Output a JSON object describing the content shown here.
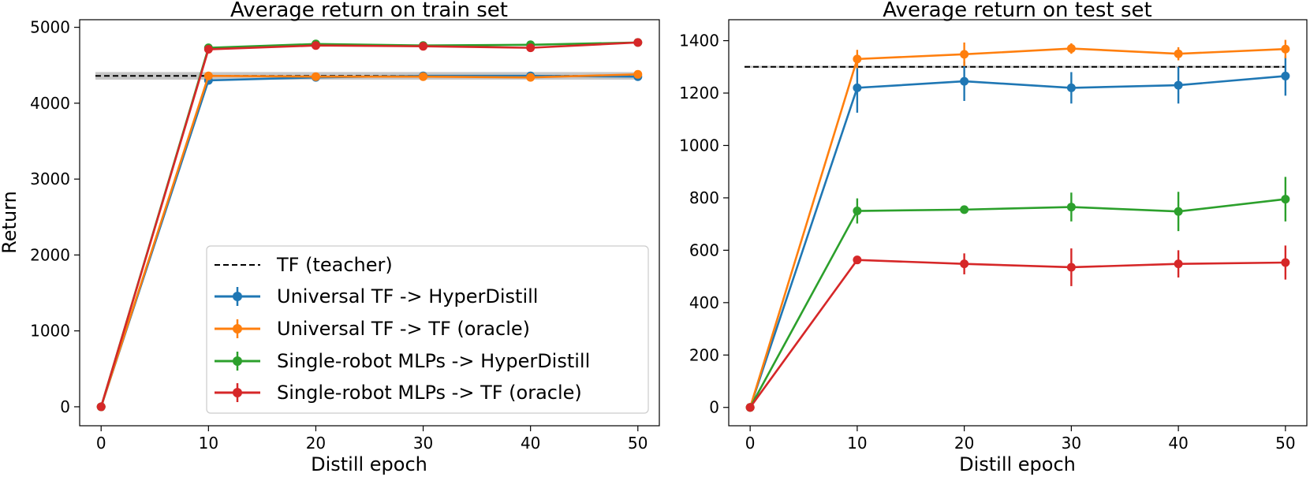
{
  "chart_data": [
    {
      "type": "line",
      "title": "Average return on train set",
      "xlabel": "Distill epoch",
      "ylabel": "Return",
      "xlim": [
        -2,
        52
      ],
      "ylim": [
        -250,
        5100
      ],
      "xticks": [
        0,
        10,
        20,
        30,
        40,
        50
      ],
      "yticks": [
        0,
        1000,
        2000,
        3000,
        4000,
        5000
      ],
      "grid": false,
      "legend": "lower-right",
      "teacher": {
        "name": "TF (teacher)",
        "value": 4360,
        "band": [
          4310,
          4410
        ],
        "color": "#000000",
        "style": "dashed"
      },
      "x": [
        0,
        10,
        20,
        30,
        40,
        50
      ],
      "series": [
        {
          "name": "Universal TF -> HyperDistill",
          "color": "#1f77b4",
          "values": [
            0,
            4300,
            4340,
            4360,
            4360,
            4350
          ],
          "errors": [
            0,
            0,
            0,
            0,
            0,
            0
          ]
        },
        {
          "name": "Universal TF -> TF (oracle)",
          "color": "#ff7f0e",
          "values": [
            0,
            4360,
            4350,
            4350,
            4340,
            4380
          ],
          "errors": [
            0,
            0,
            0,
            0,
            0,
            0
          ]
        },
        {
          "name": "Single-robot MLPs -> HyperDistill",
          "color": "#2ca02c",
          "values": [
            0,
            4730,
            4780,
            4760,
            4770,
            4800
          ],
          "errors": [
            0,
            0,
            0,
            0,
            0,
            0
          ]
        },
        {
          "name": "Single-robot MLPs -> TF (oracle)",
          "color": "#d62728",
          "values": [
            0,
            4710,
            4760,
            4750,
            4730,
            4800
          ],
          "errors": [
            0,
            0,
            0,
            0,
            0,
            0
          ]
        }
      ]
    },
    {
      "type": "line",
      "title": "Average return on test set",
      "xlabel": "Distill epoch",
      "ylabel": "",
      "xlim": [
        -2,
        52
      ],
      "ylim": [
        -70,
        1480
      ],
      "xticks": [
        0,
        10,
        20,
        30,
        40,
        50
      ],
      "yticks": [
        0,
        200,
        400,
        600,
        800,
        1000,
        1200,
        1400
      ],
      "grid": false,
      "teacher": {
        "name": "TF (teacher)",
        "value": 1300,
        "band": [
          1296,
          1304
        ],
        "color": "#000000",
        "style": "dashed"
      },
      "x": [
        0,
        10,
        20,
        30,
        40,
        50
      ],
      "series": [
        {
          "name": "Universal TF -> HyperDistill",
          "color": "#1f77b4",
          "values": [
            0,
            1220,
            1245,
            1220,
            1230,
            1265
          ],
          "errors": [
            0,
            95,
            75,
            60,
            70,
            75
          ]
        },
        {
          "name": "Universal TF -> TF (oracle)",
          "color": "#ff7f0e",
          "values": [
            0,
            1330,
            1348,
            1370,
            1350,
            1368
          ],
          "errors": [
            0,
            35,
            45,
            20,
            25,
            35
          ]
        },
        {
          "name": "Single-robot MLPs -> HyperDistill",
          "color": "#2ca02c",
          "values": [
            0,
            750,
            755,
            765,
            748,
            795
          ],
          "errors": [
            0,
            48,
            15,
            55,
            75,
            85
          ]
        },
        {
          "name": "Single-robot MLPs -> TF (oracle)",
          "color": "#d62728",
          "values": [
            0,
            563,
            548,
            535,
            548,
            553
          ],
          "errors": [
            0,
            15,
            40,
            72,
            52,
            65
          ]
        }
      ]
    }
  ]
}
